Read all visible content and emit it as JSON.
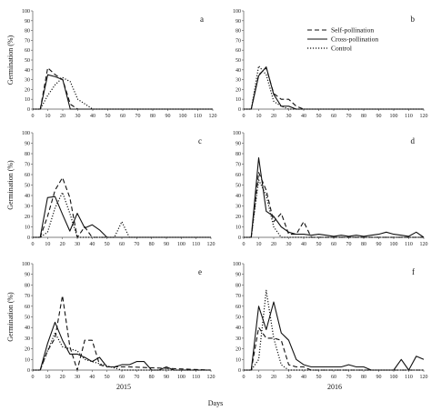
{
  "figure": {
    "x_axis_title": "Days",
    "year_labels": [
      "2015",
      "2016"
    ]
  },
  "legend": [
    {
      "name": "Self-pollination",
      "dash": "5,3",
      "width": 1.1
    },
    {
      "name": "Cross-pollination",
      "dash": "",
      "width": 1.1
    },
    {
      "name": "Control",
      "dash": "1.2,1.8",
      "width": 1.2
    }
  ],
  "chart_data": [
    {
      "type": "line",
      "panel": "a",
      "year": "2015",
      "ylabel": "Germination (%)",
      "xlim": [
        0,
        120
      ],
      "ylim": [
        0,
        100
      ],
      "xticks": [
        0,
        10,
        20,
        30,
        40,
        50,
        60,
        70,
        80,
        90,
        100,
        110,
        120
      ],
      "yticks": [
        0,
        10,
        20,
        30,
        40,
        50,
        60,
        70,
        80,
        90,
        100
      ],
      "series": [
        {
          "name": "Self-pollination",
          "x": [
            0,
            5,
            10,
            15,
            20,
            25,
            30,
            35,
            40,
            120
          ],
          "y": [
            0,
            0,
            42,
            35,
            30,
            5,
            0,
            0,
            0,
            0
          ]
        },
        {
          "name": "Cross-pollination",
          "x": [
            0,
            5,
            10,
            15,
            20,
            25,
            30,
            120
          ],
          "y": [
            0,
            0,
            35,
            33,
            30,
            0,
            0,
            0
          ]
        },
        {
          "name": "Control",
          "x": [
            0,
            5,
            10,
            15,
            20,
            25,
            30,
            35,
            40,
            45,
            120
          ],
          "y": [
            0,
            0,
            14,
            25,
            32,
            28,
            10,
            5,
            0,
            0,
            0
          ]
        }
      ]
    },
    {
      "type": "line",
      "panel": "b",
      "year": "2016",
      "ylabel": "",
      "xlim": [
        0,
        120
      ],
      "ylim": [
        0,
        100
      ],
      "xticks": [
        0,
        10,
        20,
        30,
        40,
        50,
        60,
        70,
        80,
        90,
        100,
        110,
        120
      ],
      "yticks": [
        0,
        10,
        20,
        30,
        40,
        50,
        60,
        70,
        80,
        90,
        100
      ],
      "series": [
        {
          "name": "Self-pollination",
          "x": [
            0,
            5,
            10,
            15,
            20,
            25,
            30,
            35,
            40,
            120
          ],
          "y": [
            0,
            0,
            35,
            42,
            16,
            10,
            10,
            3,
            0,
            0
          ]
        },
        {
          "name": "Cross-pollination",
          "x": [
            0,
            5,
            10,
            15,
            20,
            25,
            30,
            35,
            120
          ],
          "y": [
            0,
            0,
            34,
            43,
            15,
            3,
            3,
            0,
            0
          ]
        },
        {
          "name": "Control",
          "x": [
            0,
            5,
            10,
            15,
            20,
            25,
            30,
            35,
            120
          ],
          "y": [
            0,
            0,
            44,
            35,
            8,
            3,
            0,
            0,
            0
          ]
        }
      ]
    },
    {
      "type": "line",
      "panel": "c",
      "year": "2015",
      "ylabel": "Germination (%)",
      "xlim": [
        0,
        120
      ],
      "ylim": [
        0,
        100
      ],
      "xticks": [
        0,
        10,
        20,
        30,
        40,
        50,
        60,
        70,
        80,
        90,
        100,
        110,
        120
      ],
      "yticks": [
        0,
        10,
        20,
        30,
        40,
        50,
        60,
        70,
        80,
        90,
        100
      ],
      "series": [
        {
          "name": "Self-pollination",
          "x": [
            0,
            5,
            10,
            15,
            20,
            25,
            30,
            35,
            40,
            45,
            50,
            120
          ],
          "y": [
            0,
            0,
            20,
            45,
            57,
            38,
            0,
            10,
            0,
            0,
            0,
            0
          ]
        },
        {
          "name": "Cross-pollination",
          "x": [
            0,
            5,
            10,
            15,
            20,
            25,
            30,
            35,
            40,
            45,
            50,
            55,
            60,
            65,
            70,
            120
          ],
          "y": [
            0,
            0,
            38,
            39,
            22,
            6,
            23,
            9,
            12,
            7,
            0,
            0,
            0,
            0,
            0,
            0
          ]
        },
        {
          "name": "Control",
          "x": [
            0,
            5,
            10,
            15,
            20,
            25,
            30,
            35,
            40,
            45,
            50,
            55,
            60,
            65,
            70,
            120
          ],
          "y": [
            0,
            0,
            5,
            28,
            43,
            23,
            0,
            0,
            0,
            0,
            0,
            0,
            15,
            0,
            0,
            0
          ]
        }
      ]
    },
    {
      "type": "line",
      "panel": "d",
      "year": "2016",
      "ylabel": "",
      "xlim": [
        0,
        120
      ],
      "ylim": [
        0,
        100
      ],
      "xticks": [
        0,
        10,
        20,
        30,
        40,
        50,
        60,
        70,
        80,
        90,
        100,
        110,
        120
      ],
      "yticks": [
        0,
        10,
        20,
        30,
        40,
        50,
        60,
        70,
        80,
        90,
        100
      ],
      "series": [
        {
          "name": "Self-pollination",
          "x": [
            0,
            5,
            10,
            15,
            20,
            25,
            30,
            35,
            40,
            45,
            50,
            55,
            120
          ],
          "y": [
            0,
            0,
            62,
            45,
            15,
            23,
            3,
            3,
            15,
            0,
            0,
            0,
            0
          ]
        },
        {
          "name": "Cross-pollination",
          "x": [
            0,
            5,
            10,
            15,
            20,
            25,
            30,
            35,
            40,
            45,
            50,
            55,
            60,
            65,
            70,
            75,
            80,
            85,
            90,
            95,
            100,
            105,
            110,
            115,
            120
          ],
          "y": [
            0,
            0,
            76,
            25,
            20,
            10,
            5,
            3,
            3,
            2,
            3,
            2,
            1,
            2,
            1,
            2,
            1,
            2,
            3,
            5,
            3,
            2,
            1,
            5,
            0
          ]
        },
        {
          "name": "Control",
          "x": [
            0,
            5,
            10,
            15,
            20,
            25,
            30,
            35,
            120
          ],
          "y": [
            0,
            0,
            55,
            40,
            10,
            0,
            0,
            0,
            0
          ]
        }
      ]
    },
    {
      "type": "line",
      "panel": "e",
      "year": "2015",
      "ylabel": "Germination (%)",
      "xlim": [
        0,
        120
      ],
      "ylim": [
        0,
        100
      ],
      "xticks": [
        0,
        10,
        20,
        30,
        40,
        50,
        60,
        70,
        80,
        90,
        100,
        110,
        120
      ],
      "yticks": [
        0,
        10,
        20,
        30,
        40,
        50,
        60,
        70,
        80,
        90,
        100
      ],
      "series": [
        {
          "name": "Self-pollination",
          "x": [
            0,
            5,
            10,
            15,
            20,
            25,
            30,
            35,
            40,
            45,
            50,
            55,
            60,
            65,
            120
          ],
          "y": [
            0,
            0,
            18,
            30,
            70,
            22,
            0,
            28,
            28,
            5,
            3,
            3,
            3,
            3,
            0
          ]
        },
        {
          "name": "Cross-pollination",
          "x": [
            0,
            5,
            10,
            15,
            20,
            25,
            30,
            35,
            40,
            45,
            50,
            55,
            60,
            65,
            70,
            75,
            80,
            85,
            90,
            95,
            100,
            120
          ],
          "y": [
            0,
            0,
            25,
            45,
            28,
            15,
            15,
            12,
            8,
            12,
            3,
            3,
            5,
            5,
            8,
            8,
            0,
            0,
            3,
            0,
            0,
            0
          ]
        },
        {
          "name": "Control",
          "x": [
            0,
            5,
            10,
            15,
            20,
            25,
            30,
            35,
            40,
            45,
            50,
            55,
            60,
            65,
            70,
            120
          ],
          "y": [
            0,
            0,
            18,
            35,
            22,
            20,
            18,
            10,
            8,
            6,
            4,
            2,
            0,
            0,
            0,
            0
          ]
        }
      ]
    },
    {
      "type": "line",
      "panel": "f",
      "year": "2016",
      "ylabel": "",
      "xlim": [
        0,
        120
      ],
      "ylim": [
        0,
        100
      ],
      "xticks": [
        0,
        10,
        20,
        30,
        40,
        50,
        60,
        70,
        80,
        90,
        100,
        110,
        120
      ],
      "yticks": [
        0,
        10,
        20,
        30,
        40,
        50,
        60,
        70,
        80,
        90,
        100
      ],
      "series": [
        {
          "name": "Self-pollination",
          "x": [
            0,
            5,
            10,
            15,
            20,
            25,
            30,
            35,
            40,
            45,
            120
          ],
          "y": [
            0,
            0,
            40,
            30,
            30,
            28,
            5,
            3,
            3,
            0,
            0
          ]
        },
        {
          "name": "Cross-pollination",
          "x": [
            0,
            5,
            10,
            15,
            20,
            25,
            30,
            35,
            40,
            45,
            50,
            55,
            60,
            65,
            70,
            75,
            80,
            85,
            90,
            95,
            100,
            105,
            110,
            115,
            120
          ],
          "y": [
            0,
            0,
            60,
            38,
            64,
            35,
            28,
            10,
            5,
            3,
            3,
            3,
            3,
            3,
            5,
            3,
            3,
            0,
            0,
            0,
            0,
            10,
            0,
            13,
            10
          ]
        },
        {
          "name": "Control",
          "x": [
            0,
            5,
            10,
            15,
            20,
            25,
            30,
            35,
            40,
            120
          ],
          "y": [
            0,
            0,
            10,
            75,
            30,
            5,
            0,
            0,
            0,
            0
          ]
        }
      ]
    }
  ]
}
